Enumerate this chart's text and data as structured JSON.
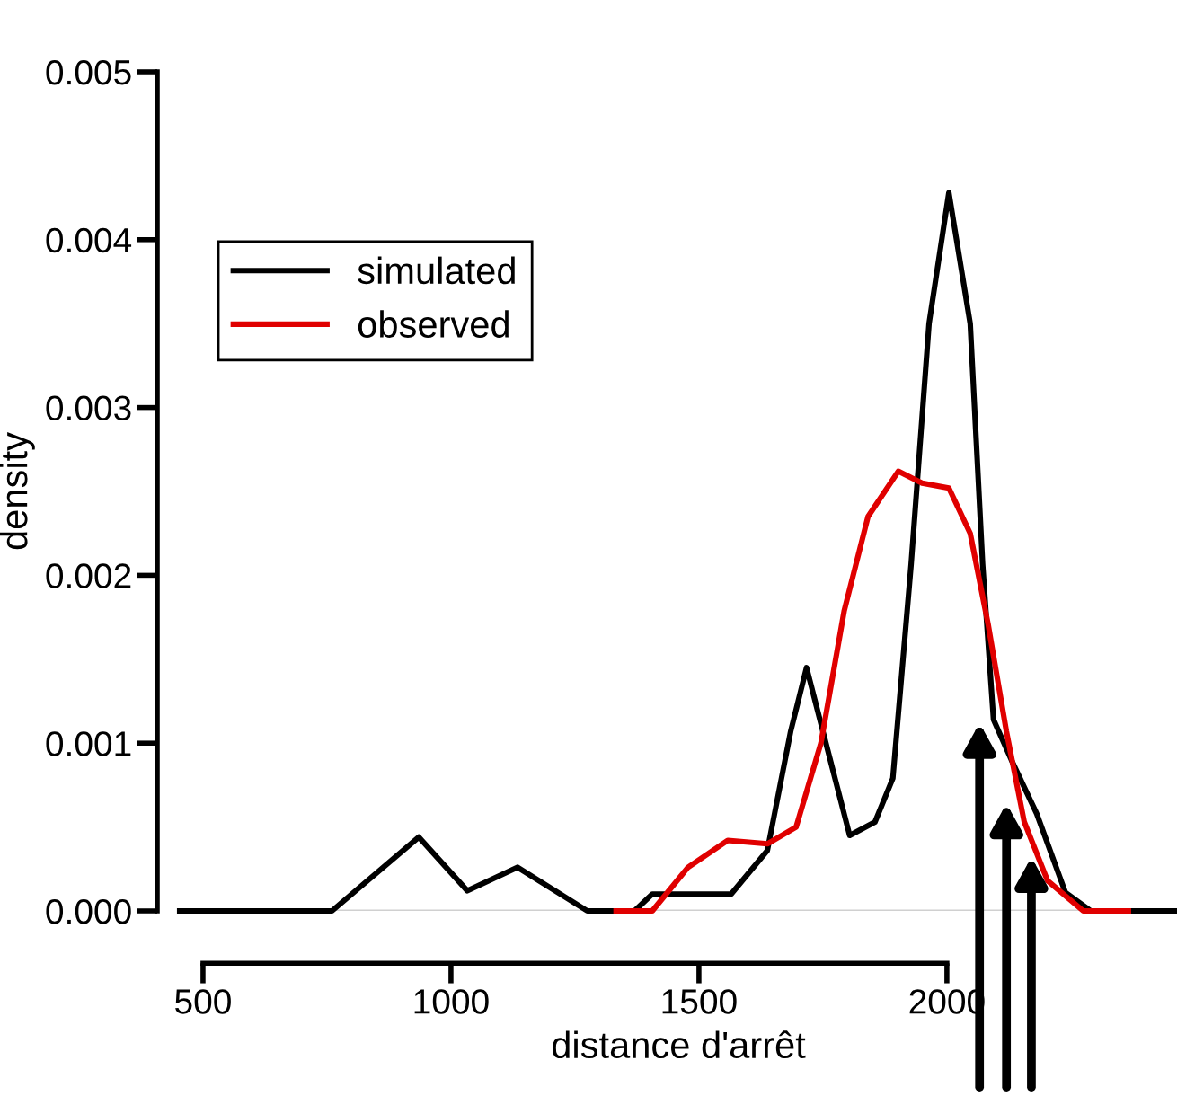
{
  "chart_data": {
    "type": "line",
    "xlabel": "distance d'arrêt",
    "ylabel": "density",
    "xlim": [
      453,
      2464
    ],
    "ylim": [
      0,
      0.005
    ],
    "xticks": [
      500,
      1000,
      1500,
      2000
    ],
    "yticks": [
      {
        "value": 0,
        "label": "0.000"
      },
      {
        "value": 0.001,
        "label": "0.001"
      },
      {
        "value": 0.002,
        "label": "0.002"
      },
      {
        "value": 0.003,
        "label": "0.003"
      },
      {
        "value": 0.004,
        "label": "0.004"
      },
      {
        "value": 0.005,
        "label": "0.005"
      }
    ],
    "grid": false,
    "legend": "top left",
    "marker": "none",
    "line_style": "solid",
    "ref_lines": [
      {
        "axis": "y",
        "value": 0,
        "color": "#d0d0d0"
      }
    ],
    "series": [
      {
        "name": "simulated",
        "color": "#000000",
        "x": [
          453,
          560,
          760,
          935,
          1033,
          1134,
          1275,
          1370,
          1406,
          1565,
          1638,
          1685,
          1717,
          1750,
          1804,
          1855,
          1891,
          1928,
          1964,
          2004,
          2047,
          2072,
          2094,
          2130,
          2181,
          2239,
          2290,
          2464
        ],
        "values": [
          0,
          0,
          0,
          0.00044,
          0.00012,
          0.00026,
          0,
          0,
          0.0001,
          0.0001,
          0.00036,
          0.00107,
          0.00145,
          0.00107,
          0.00045,
          0.00053,
          0.00079,
          0.00207,
          0.0035,
          0.00428,
          0.0035,
          0.00207,
          0.00114,
          0.0009,
          0.00058,
          0.00011,
          0,
          0
        ]
      },
      {
        "name": "observed",
        "color": "#e00000",
        "x": [
          1333,
          1406,
          1478,
          1558,
          1638,
          1696,
          1746,
          1793,
          1841,
          1902,
          1950,
          2004,
          2047,
          2083,
          2120,
          2156,
          2203,
          2275,
          2366
        ],
        "values": [
          0,
          0,
          0.00026,
          0.00042,
          0.0004,
          0.0005,
          0.001,
          0.00179,
          0.00235,
          0.00262,
          0.00255,
          0.00252,
          0.00225,
          0.00171,
          0.00107,
          0.00053,
          0.00018,
          0,
          0
        ]
      }
    ]
  }
}
